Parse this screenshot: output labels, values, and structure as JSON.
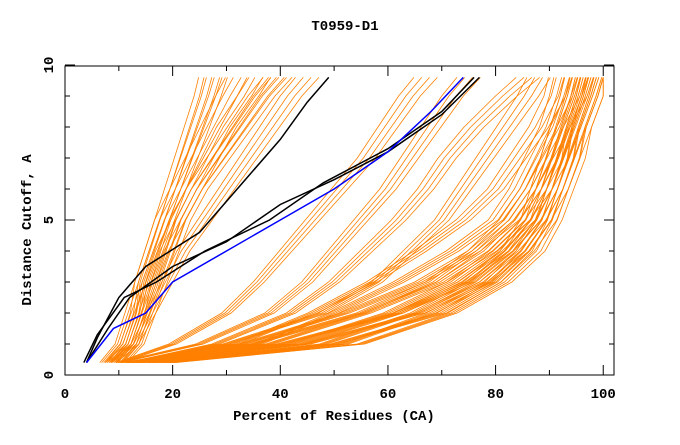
{
  "chart_data": {
    "type": "line",
    "title": "T0959-D1",
    "xlabel": "Percent of Residues (CA)",
    "ylabel": "Distance Cutoff, A",
    "xlim": [
      0,
      102
    ],
    "ylim": [
      0,
      10
    ],
    "xticks": [
      0,
      20,
      40,
      60,
      80,
      100
    ],
    "yticks": [
      0,
      5,
      10
    ],
    "grid": false,
    "colors": {
      "orange": "#ff8000",
      "black": "#000000",
      "blue": "#0000ff"
    },
    "y_levels": [
      0.4,
      1,
      2,
      3,
      4,
      5,
      6,
      7,
      8,
      9,
      9.6
    ],
    "orange_series": [
      [
        8,
        11,
        13,
        14,
        16,
        18,
        21,
        24,
        27,
        30,
        32
      ],
      [
        9,
        12,
        14,
        15,
        17,
        19,
        21,
        23,
        25,
        27,
        28
      ],
      [
        7,
        10,
        12,
        14,
        16,
        18,
        20,
        22,
        24,
        26,
        27
      ],
      [
        10,
        13,
        15,
        17,
        19,
        21,
        24,
        27,
        30,
        34,
        36
      ],
      [
        8,
        12,
        14,
        16,
        18,
        21,
        24,
        28,
        32,
        36,
        39
      ],
      [
        11,
        14,
        16,
        18,
        20,
        22,
        25,
        29,
        33,
        37,
        40
      ],
      [
        9,
        13,
        16,
        19,
        22,
        26,
        30,
        34,
        38,
        42,
        45
      ],
      [
        10,
        20,
        30,
        36,
        41,
        46,
        51,
        56,
        60,
        64,
        67
      ],
      [
        10,
        25,
        38,
        45,
        50,
        55,
        60,
        64,
        68,
        72,
        75
      ],
      [
        12,
        28,
        42,
        50,
        56,
        62,
        67,
        71,
        76,
        82,
        86
      ],
      [
        12,
        30,
        48,
        58,
        64,
        70,
        74,
        78,
        82,
        86,
        88
      ],
      [
        13,
        35,
        55,
        68,
        76,
        82,
        86,
        89,
        92,
        95,
        96
      ],
      [
        15,
        40,
        62,
        75,
        82,
        87,
        90,
        92,
        94,
        96,
        97
      ],
      [
        16,
        45,
        66,
        78,
        85,
        89,
        91,
        93,
        95,
        97,
        98
      ],
      [
        18,
        50,
        70,
        80,
        86,
        90,
        92,
        94,
        96,
        98,
        99
      ],
      [
        14,
        42,
        60,
        72,
        80,
        86,
        89,
        92,
        94,
        96,
        97
      ],
      [
        17,
        48,
        65,
        76,
        83,
        88,
        91,
        93,
        95,
        97,
        98
      ],
      [
        20,
        55,
        72,
        82,
        88,
        91,
        93,
        95,
        96,
        98,
        99
      ],
      [
        13,
        38,
        56,
        70,
        79,
        85,
        89,
        91,
        93,
        95,
        96
      ],
      [
        11,
        33,
        52,
        66,
        76,
        83,
        87,
        90,
        92,
        94,
        95
      ],
      [
        19,
        52,
        68,
        79,
        85,
        89,
        92,
        94,
        95,
        97,
        98
      ],
      [
        14,
        36,
        50,
        62,
        72,
        80,
        84,
        87,
        90,
        92,
        93
      ],
      [
        12,
        32,
        46,
        57,
        66,
        74,
        80,
        84,
        88,
        91,
        92
      ],
      [
        16,
        44,
        62,
        74,
        82,
        86,
        88,
        90,
        92,
        94,
        95
      ]
    ],
    "highlight_series": [
      {
        "name": "black-1",
        "color": "black",
        "x": [
          4,
          6,
          10,
          15,
          25,
          30,
          35,
          40,
          45,
          49
        ],
        "y": [
          0.4,
          1.2,
          2.5,
          3.5,
          4.6,
          5.6,
          6.6,
          7.6,
          8.8,
          9.6
        ]
      },
      {
        "name": "black-2",
        "color": "black",
        "x": [
          4,
          8,
          12,
          20,
          30,
          40,
          50,
          60,
          70,
          77
        ],
        "y": [
          0.4,
          1.5,
          2.5,
          3.5,
          4.3,
          5.5,
          6.3,
          7.2,
          8.4,
          9.6
        ]
      },
      {
        "name": "black-3",
        "color": "black",
        "x": [
          3.5,
          6,
          11,
          17,
          26,
          38,
          48,
          60,
          70,
          76
        ],
        "y": [
          0.4,
          1.3,
          2.5,
          3,
          4,
          5,
          6.2,
          7.3,
          8.5,
          9.6
        ]
      },
      {
        "name": "blue-1",
        "color": "blue",
        "x": [
          4,
          9,
          15,
          20,
          30,
          40,
          50,
          60,
          68,
          74
        ],
        "y": [
          0.4,
          1.5,
          2,
          3,
          4,
          5,
          6,
          7.2,
          8.5,
          9.6
        ]
      }
    ]
  }
}
